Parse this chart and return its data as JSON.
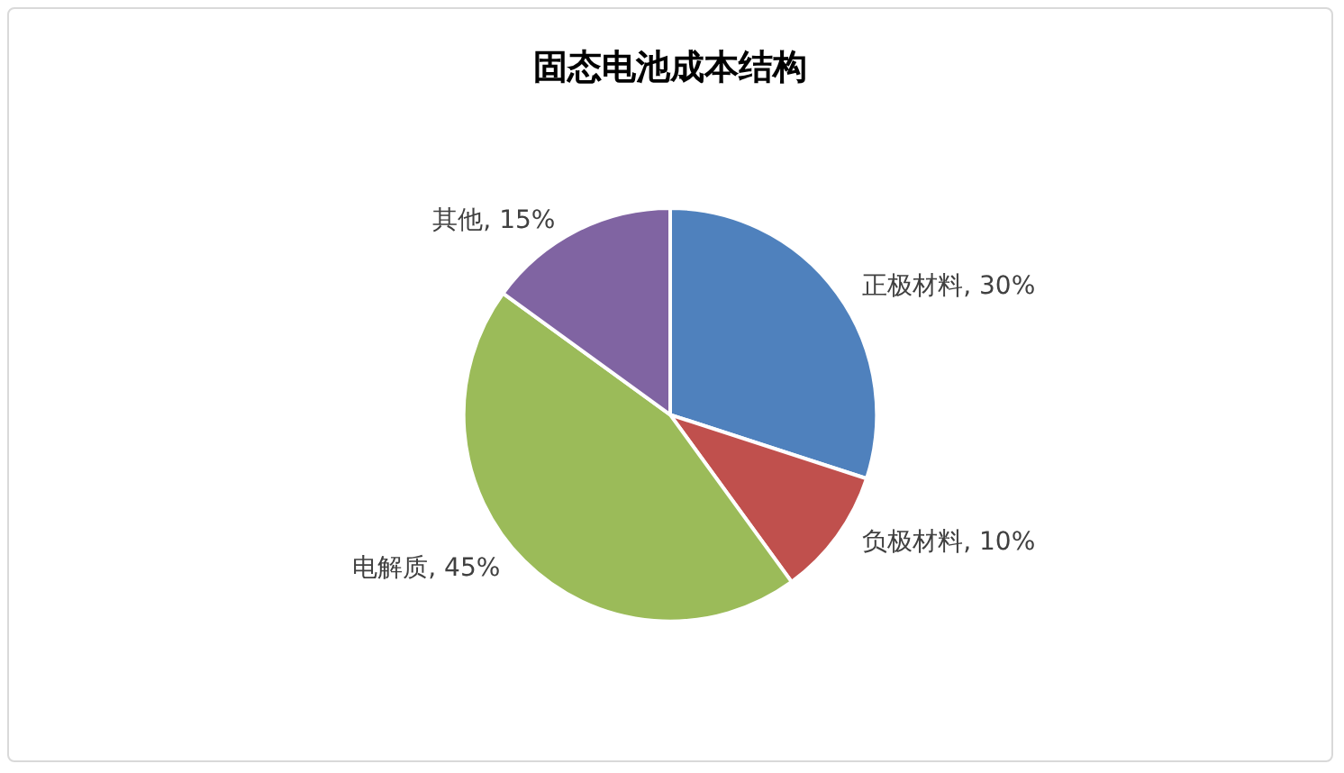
{
  "chart_data": {
    "type": "pie",
    "title": "固态电池成本结构",
    "categories": [
      "正极材料",
      "负极材料",
      "电解质",
      "其他"
    ],
    "values": [
      30,
      10,
      45,
      15
    ],
    "colors": [
      "#4f81bd",
      "#c0504d",
      "#9bbb59",
      "#8064a2"
    ],
    "value_labels": [
      "30%",
      "10%",
      "45%",
      "15%"
    ]
  }
}
